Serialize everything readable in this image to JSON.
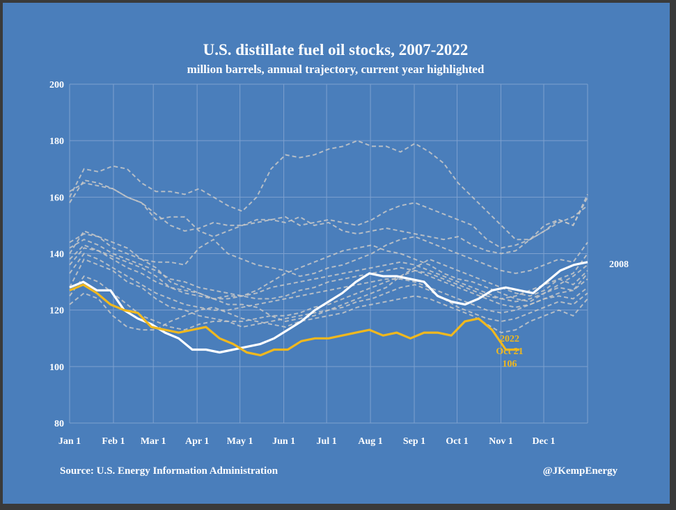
{
  "colors": {
    "background": "#4a7ebb",
    "frame": "#3a3a3a",
    "grid": "#7ea1cf",
    "history": "#c8c8c8",
    "highlight_2008": "#ffffff",
    "current_2022": "#f0b81e"
  },
  "chart_data": {
    "type": "line",
    "title": "U.S. distillate fuel oil stocks, 2007-2022",
    "subtitle": "million barrels, annual trajectory, current year highlighted",
    "xlabel": "",
    "ylabel": "",
    "ylim": [
      80,
      200
    ],
    "yticks": [
      80,
      100,
      120,
      140,
      160,
      180,
      200
    ],
    "xlim": [
      1,
      53
    ],
    "x_tick_labels": [
      {
        "label": "Jan 1",
        "week": 1
      },
      {
        "label": "Feb 1",
        "week": 5.4
      },
      {
        "label": "Mar 1",
        "week": 9.4
      },
      {
        "label": "Apr 1",
        "week": 13.8
      },
      {
        "label": "May 1",
        "week": 18.1
      },
      {
        "label": "Jun 1",
        "week": 22.5
      },
      {
        "label": "Jul 1",
        "week": 26.8
      },
      {
        "label": "Aug 1",
        "week": 31.2
      },
      {
        "label": "Sep 1",
        "week": 35.6
      },
      {
        "label": "Oct 1",
        "week": 39.9
      },
      {
        "label": "Nov 1",
        "week": 44.3
      },
      {
        "label": "Dec 1",
        "week": 48.6
      }
    ],
    "grid": true,
    "background_series": [
      {
        "name": "hist-a",
        "values": [
          158,
          166,
          165,
          163,
          160,
          158,
          154,
          150,
          148,
          149,
          151,
          150,
          150,
          151,
          152,
          153,
          150,
          151,
          152,
          151,
          150,
          152,
          155,
          157,
          158,
          156,
          154,
          152,
          150,
          145,
          142,
          143,
          145,
          148,
          151,
          153,
          157
        ]
      },
      {
        "name": "hist-b",
        "values": [
          160,
          170,
          169,
          171,
          170,
          165,
          162,
          162,
          161,
          163,
          160,
          157,
          155,
          160,
          170,
          175,
          174,
          175,
          177,
          178,
          180,
          178,
          178,
          176,
          179,
          176,
          172,
          165,
          160,
          155,
          150,
          145,
          145,
          150,
          152,
          150,
          161
        ]
      },
      {
        "name": "hist-c",
        "values": [
          162,
          165,
          164,
          163,
          160,
          158,
          152,
          153,
          153,
          148,
          146,
          148,
          150,
          152,
          152,
          151,
          153,
          150,
          151,
          148,
          147,
          148,
          149,
          148,
          147,
          146,
          145,
          146,
          143,
          141,
          140,
          141,
          145,
          148,
          152,
          150,
          160
        ]
      },
      {
        "name": "hist-d",
        "values": [
          140,
          148,
          146,
          144,
          142,
          138,
          135,
          130,
          128,
          126,
          124,
          122,
          122,
          121,
          118,
          116,
          117,
          118,
          120,
          122,
          124,
          126,
          128,
          132,
          135,
          138,
          136,
          134,
          132,
          130,
          128,
          126,
          125,
          127,
          131,
          133,
          140
        ]
      },
      {
        "name": "hist-e",
        "values": [
          136,
          142,
          141,
          139,
          137,
          135,
          132,
          128,
          127,
          126,
          124,
          125,
          125,
          127,
          130,
          133,
          135,
          137,
          139,
          141,
          142,
          143,
          141,
          140,
          138,
          136,
          133,
          131,
          130,
          128,
          126,
          124,
          123,
          126,
          129,
          132,
          136
        ]
      },
      {
        "name": "hist-f",
        "values": [
          144,
          147,
          146,
          142,
          140,
          138,
          137,
          137,
          136,
          142,
          145,
          140,
          138,
          136,
          135,
          134,
          132,
          133,
          135,
          136,
          138,
          140,
          143,
          145,
          146,
          144,
          142,
          140,
          138,
          136,
          134,
          133,
          134,
          136,
          138,
          137,
          144
        ]
      },
      {
        "name": "hist-g",
        "values": [
          128,
          138,
          136,
          134,
          130,
          128,
          124,
          121,
          120,
          118,
          117,
          116,
          116,
          117,
          118,
          118,
          119,
          121,
          122,
          124,
          126,
          128,
          130,
          132,
          134,
          132,
          130,
          128,
          126,
          124,
          122,
          121,
          122,
          124,
          126,
          127,
          131
        ]
      },
      {
        "name": "hist-h",
        "values": [
          125,
          132,
          130,
          126,
          122,
          118,
          116,
          114,
          113,
          115,
          116,
          116,
          114,
          115,
          116,
          117,
          118,
          119,
          120,
          121,
          123,
          124,
          126,
          128,
          129,
          127,
          124,
          121,
          119,
          117,
          116,
          117,
          119,
          121,
          123,
          122,
          126
        ]
      },
      {
        "name": "hist-i",
        "values": [
          133,
          140,
          138,
          135,
          132,
          129,
          126,
          124,
          122,
          121,
          120,
          120,
          121,
          122,
          123,
          124,
          125,
          126,
          127,
          128,
          129,
          130,
          131,
          131,
          130,
          128,
          126,
          124,
          122,
          120,
          119,
          120,
          122,
          124,
          125,
          124,
          128
        ]
      },
      {
        "name": "hist-j",
        "values": [
          122,
          126,
          124,
          118,
          114,
          113,
          113,
          116,
          118,
          120,
          121,
          119,
          117,
          116,
          115,
          114,
          116,
          117,
          118,
          119,
          121,
          122,
          123,
          124,
          125,
          124,
          122,
          120,
          118,
          115,
          112,
          113,
          116,
          118,
          120,
          118,
          124
        ]
      },
      {
        "name": "hist-k",
        "values": [
          142,
          145,
          143,
          140,
          138,
          136,
          134,
          131,
          130,
          128,
          127,
          126,
          125,
          124,
          124,
          125,
          127,
          128,
          130,
          131,
          132,
          133,
          134,
          135,
          134,
          133,
          131,
          129,
          127,
          125,
          124,
          125,
          127,
          129,
          131,
          129,
          134
        ]
      },
      {
        "name": "hist-l",
        "values": [
          138,
          143,
          141,
          138,
          135,
          133,
          130,
          128,
          126,
          125,
          124,
          124,
          125,
          126,
          128,
          129,
          130,
          131,
          132,
          133,
          134,
          135,
          136,
          137,
          136,
          134,
          132,
          130,
          128,
          126,
          124,
          123,
          124,
          126,
          128,
          127,
          133
        ]
      }
    ],
    "series": [
      {
        "name": "2008",
        "color": "#ffffff",
        "end_label": "2008",
        "values": [
          128,
          130,
          127,
          127,
          120,
          117,
          115,
          112,
          110,
          106,
          106,
          105,
          106,
          107,
          108,
          110,
          113,
          116,
          120,
          123,
          126,
          130,
          133,
          132,
          132,
          131,
          130,
          125,
          123,
          122,
          124,
          127,
          128,
          127,
          126,
          130,
          134,
          136,
          137
        ]
      },
      {
        "name": "2022",
        "color": "#f0b81e",
        "values": [
          127,
          129,
          126,
          122,
          120,
          119,
          114,
          113,
          112,
          113,
          114,
          110,
          108,
          105,
          104,
          106,
          106,
          109,
          110,
          110,
          111,
          112,
          113,
          111,
          112,
          110,
          112,
          112,
          111,
          116,
          117,
          113,
          106,
          106
        ]
      }
    ],
    "annotation": {
      "year": "2022",
      "date": "Oct 21",
      "value": "106"
    },
    "source": "Source: U.S. Energy Information Administration",
    "credit": "@JKempEnergy"
  }
}
